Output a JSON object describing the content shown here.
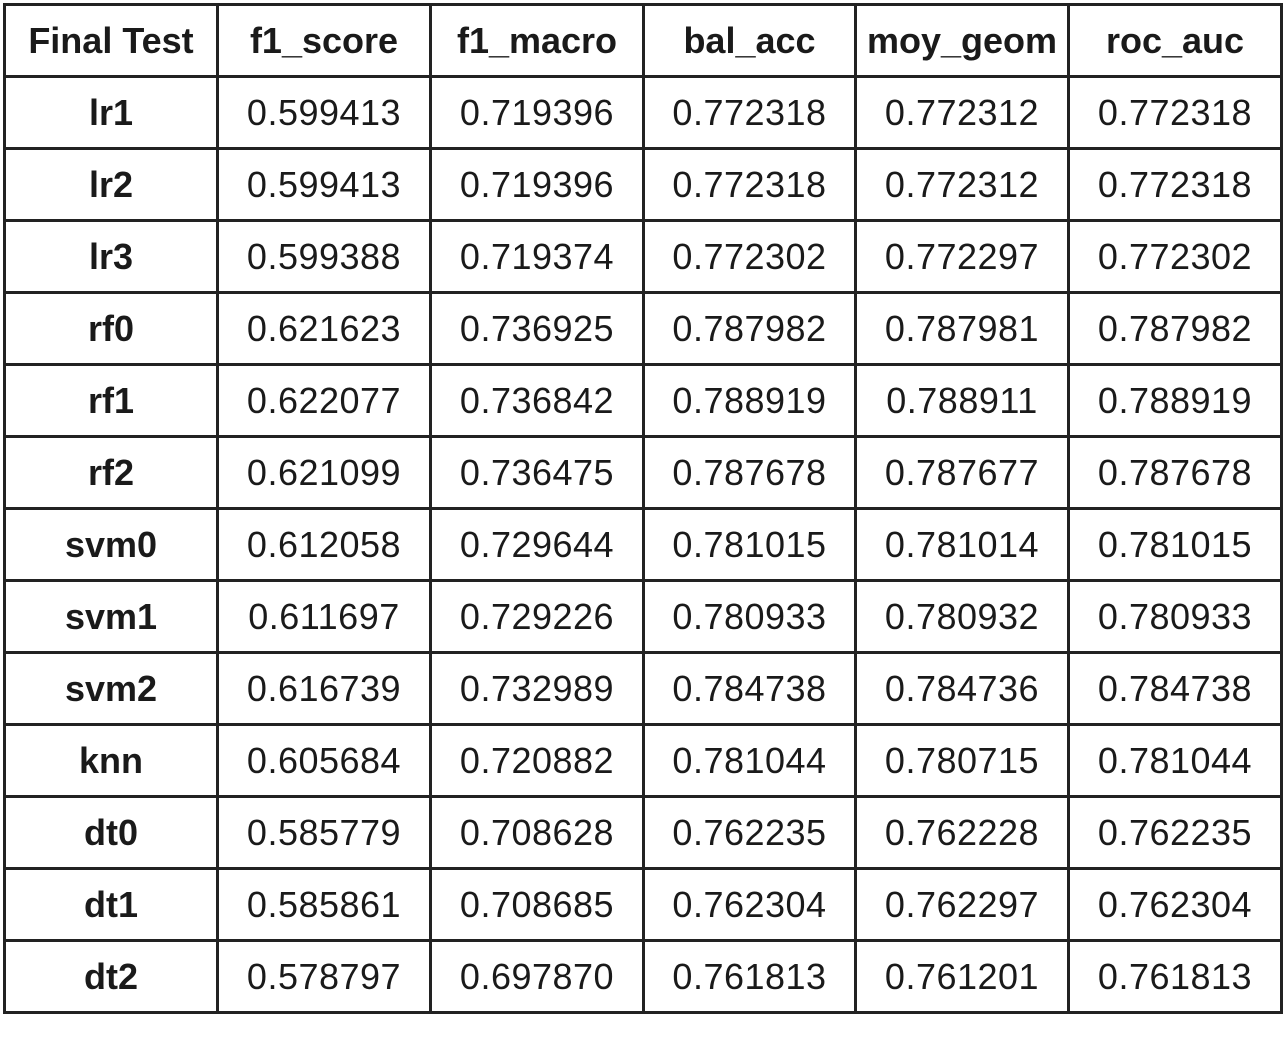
{
  "table": {
    "headers": [
      "Final Test",
      "f1_score",
      "f1_macro",
      "bal_acc",
      "moy_geom",
      "roc_auc"
    ],
    "rows": [
      [
        "lr1",
        "0.599413",
        "0.719396",
        "0.772318",
        "0.772312",
        "0.772318"
      ],
      [
        "lr2",
        "0.599413",
        "0.719396",
        "0.772318",
        "0.772312",
        "0.772318"
      ],
      [
        "lr3",
        "0.599388",
        "0.719374",
        "0.772302",
        "0.772297",
        "0.772302"
      ],
      [
        "rf0",
        "0.621623",
        "0.736925",
        "0.787982",
        "0.787981",
        "0.787982"
      ],
      [
        "rf1",
        "0.622077",
        "0.736842",
        "0.788919",
        "0.788911",
        "0.788919"
      ],
      [
        "rf2",
        "0.621099",
        "0.736475",
        "0.787678",
        "0.787677",
        "0.787678"
      ],
      [
        "svm0",
        "0.612058",
        "0.729644",
        "0.781015",
        "0.781014",
        "0.781015"
      ],
      [
        "svm1",
        "0.611697",
        "0.729226",
        "0.780933",
        "0.780932",
        "0.780933"
      ],
      [
        "svm2",
        "0.616739",
        "0.732989",
        "0.784738",
        "0.784736",
        "0.784738"
      ],
      [
        "knn",
        "0.605684",
        "0.720882",
        "0.781044",
        "0.780715",
        "0.781044"
      ],
      [
        "dt0",
        "0.585779",
        "0.708628",
        "0.762235",
        "0.762228",
        "0.762235"
      ],
      [
        "dt1",
        "0.585861",
        "0.708685",
        "0.762304",
        "0.762297",
        "0.762304"
      ],
      [
        "dt2",
        "0.578797",
        "0.697870",
        "0.761813",
        "0.761201",
        "0.761813"
      ]
    ]
  }
}
